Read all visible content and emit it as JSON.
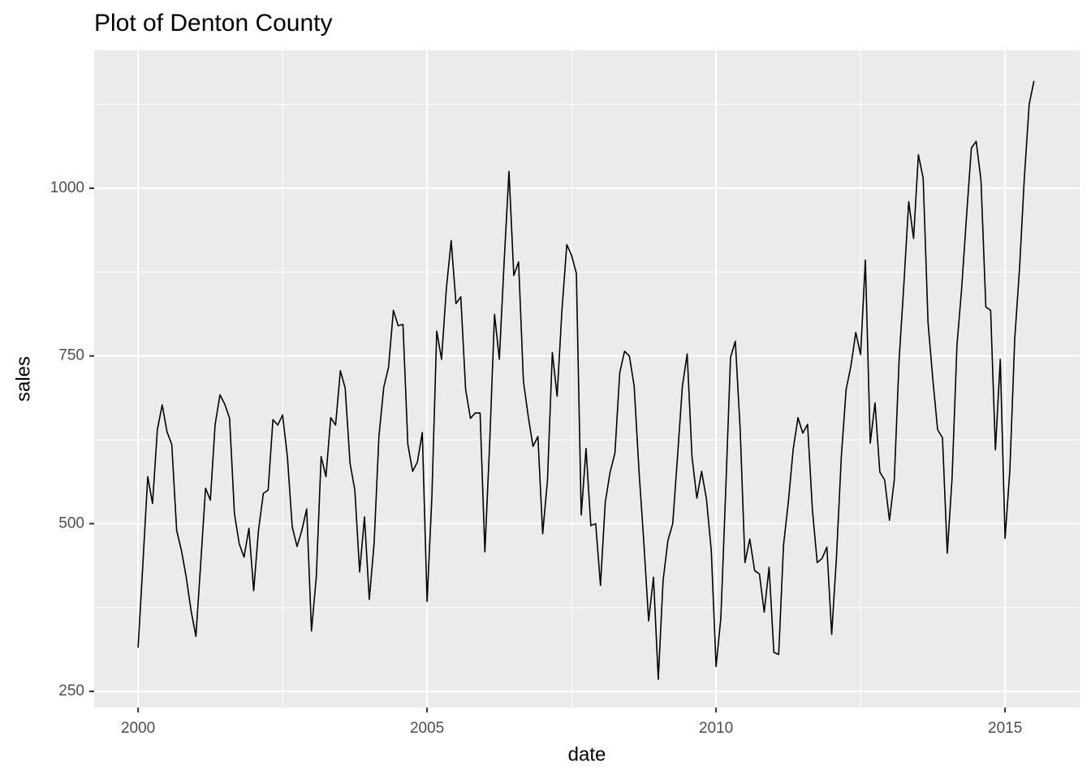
{
  "chart_data": {
    "type": "line",
    "title": "Plot of Denton County",
    "xlabel": "date",
    "ylabel": "sales",
    "color": "#000000",
    "grid": true,
    "xlim": [
      1999.24,
      2016.29
    ],
    "xticks": [
      2000,
      2005,
      2010,
      2015
    ],
    "ylim": [
      225.8,
      1205.6
    ],
    "yticks": [
      250,
      500,
      750,
      1000
    ],
    "x": [
      2000,
      2000.083,
      2000.167,
      2000.25,
      2000.333,
      2000.417,
      2000.5,
      2000.583,
      2000.667,
      2000.75,
      2000.833,
      2000.917,
      2001,
      2001.083,
      2001.167,
      2001.25,
      2001.333,
      2001.417,
      2001.5,
      2001.583,
      2001.667,
      2001.75,
      2001.833,
      2001.917,
      2002,
      2002.083,
      2002.167,
      2002.25,
      2002.333,
      2002.417,
      2002.5,
      2002.583,
      2002.667,
      2002.75,
      2002.833,
      2002.917,
      2003,
      2003.083,
      2003.167,
      2003.25,
      2003.333,
      2003.417,
      2003.5,
      2003.583,
      2003.667,
      2003.75,
      2003.833,
      2003.917,
      2004,
      2004.083,
      2004.167,
      2004.25,
      2004.333,
      2004.417,
      2004.5,
      2004.583,
      2004.667,
      2004.75,
      2004.833,
      2004.917,
      2005,
      2005.083,
      2005.167,
      2005.25,
      2005.333,
      2005.417,
      2005.5,
      2005.583,
      2005.667,
      2005.75,
      2005.833,
      2005.917,
      2006,
      2006.083,
      2006.167,
      2006.25,
      2006.333,
      2006.417,
      2006.5,
      2006.583,
      2006.667,
      2006.75,
      2006.833,
      2006.917,
      2007,
      2007.083,
      2007.167,
      2007.25,
      2007.333,
      2007.417,
      2007.5,
      2007.583,
      2007.667,
      2007.75,
      2007.833,
      2007.917,
      2008,
      2008.083,
      2008.167,
      2008.25,
      2008.333,
      2008.417,
      2008.5,
      2008.583,
      2008.667,
      2008.75,
      2008.833,
      2008.917,
      2009,
      2009.083,
      2009.167,
      2009.25,
      2009.333,
      2009.417,
      2009.5,
      2009.583,
      2009.667,
      2009.75,
      2009.833,
      2009.917,
      2010,
      2010.083,
      2010.167,
      2010.25,
      2010.333,
      2010.417,
      2010.5,
      2010.583,
      2010.667,
      2010.75,
      2010.833,
      2010.917,
      2011,
      2011.083,
      2011.167,
      2011.25,
      2011.333,
      2011.417,
      2011.5,
      2011.583,
      2011.667,
      2011.75,
      2011.833,
      2011.917,
      2012,
      2012.083,
      2012.167,
      2012.25,
      2012.333,
      2012.417,
      2012.5,
      2012.583,
      2012.667,
      2012.75,
      2012.833,
      2012.917,
      2013,
      2013.083,
      2013.167,
      2013.25,
      2013.333,
      2013.417,
      2013.5,
      2013.583,
      2013.667,
      2013.75,
      2013.833,
      2013.917,
      2014,
      2014.083,
      2014.167,
      2014.25,
      2014.333,
      2014.417,
      2014.5,
      2014.583,
      2014.667,
      2014.75,
      2014.833,
      2014.917,
      2015,
      2015.083,
      2015.167,
      2015.25,
      2015.333,
      2015.417,
      2015.5
    ],
    "values": [
      315,
      440,
      570,
      530,
      640,
      677,
      637,
      618,
      490,
      460,
      420,
      370,
      332,
      440,
      553,
      535,
      648,
      692,
      678,
      657,
      515,
      470,
      450,
      493,
      400,
      490,
      545,
      550,
      655,
      647,
      662,
      600,
      495,
      466,
      490,
      522,
      340,
      420,
      600,
      570,
      658,
      647,
      728,
      702,
      590,
      550,
      428,
      510,
      387,
      470,
      630,
      703,
      733,
      818,
      795,
      797,
      618,
      578,
      592,
      636,
      384,
      540,
      787,
      745,
      850,
      922,
      828,
      838,
      700,
      657,
      665,
      665,
      458,
      620,
      812,
      745,
      890,
      1025,
      870,
      890,
      712,
      660,
      615,
      630,
      485,
      565,
      755,
      690,
      818,
      916,
      900,
      873,
      513,
      612,
      497,
      500,
      408,
      532,
      577,
      605,
      725,
      757,
      750,
      705,
      578,
      472,
      355,
      420,
      268,
      415,
      475,
      500,
      600,
      705,
      753,
      600,
      538,
      578,
      537,
      460,
      287,
      360,
      550,
      748,
      772,
      640,
      442,
      477,
      430,
      425,
      368,
      435,
      308,
      305,
      468,
      532,
      610,
      658,
      635,
      648,
      520,
      442,
      448,
      465,
      335,
      450,
      600,
      700,
      735,
      785,
      752,
      893,
      620,
      680,
      577,
      565,
      505,
      565,
      745,
      858,
      980,
      925,
      1050,
      1015,
      800,
      715,
      640,
      628,
      456,
      568,
      765,
      852,
      958,
      1060,
      1070,
      1012,
      823,
      818,
      610,
      745,
      478,
      580,
      775,
      880,
      1015,
      1125,
      1160
    ]
  }
}
